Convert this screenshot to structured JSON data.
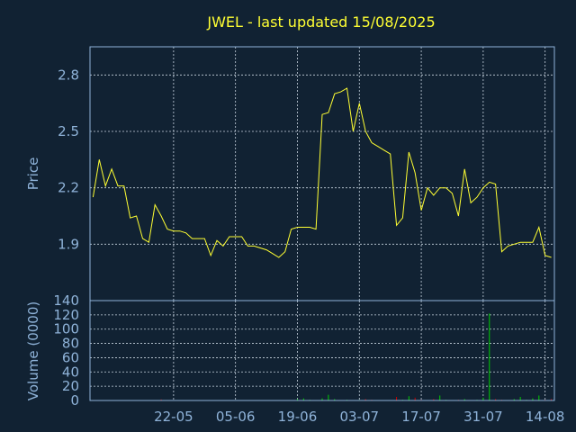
{
  "chart_data": [
    {
      "type": "line",
      "title": "JWEL - last updated 15/08/2025",
      "ylabel": "Price",
      "ylim": [
        1.6,
        2.95
      ],
      "yticks": [
        "1.9",
        "2.2",
        "2.5",
        "2.8"
      ],
      "yticks_vals": [
        1.9,
        2.2,
        2.5,
        2.8
      ],
      "grid": true,
      "x_dates": [
        "05-05",
        "06-05",
        "07-05",
        "08-05",
        "09-05",
        "12-05",
        "13-05",
        "14-05",
        "15-05",
        "16-05",
        "19-05",
        "20-05",
        "21-05",
        "22-05",
        "23-05",
        "26-05",
        "27-05",
        "28-05",
        "29-05",
        "30-05",
        "02-06",
        "03-06",
        "04-06",
        "05-06",
        "06-06",
        "09-06",
        "10-06",
        "11-06",
        "12-06",
        "13-06",
        "16-06",
        "17-06",
        "18-06",
        "19-06",
        "20-06",
        "23-06",
        "24-06",
        "25-06",
        "26-06",
        "27-06",
        "30-06",
        "01-07",
        "02-07",
        "03-07",
        "04-07",
        "07-07",
        "08-07",
        "09-07",
        "10-07",
        "11-07",
        "14-07",
        "15-07",
        "16-07",
        "17-07",
        "18-07",
        "21-07",
        "22-07",
        "23-07",
        "24-07",
        "25-07",
        "28-07",
        "29-07",
        "30-07",
        "31-07",
        "01-08",
        "04-08",
        "05-08",
        "06-08",
        "07-08",
        "08-08",
        "11-08",
        "12-08",
        "13-08",
        "14-08",
        "15-08"
      ],
      "series": [
        {
          "values": [
            2.15,
            2.35,
            2.21,
            2.3,
            2.21,
            2.21,
            2.04,
            2.05,
            1.93,
            1.91,
            2.11,
            2.05,
            1.98,
            1.97,
            1.97,
            1.96,
            1.93,
            1.93,
            1.93,
            1.84,
            1.92,
            1.89,
            1.94,
            1.94,
            1.94,
            1.89,
            1.89,
            1.88,
            1.87,
            1.85,
            1.83,
            1.86,
            1.98,
            1.99,
            1.99,
            1.99,
            1.98,
            2.59,
            2.6,
            2.7,
            2.71,
            2.73,
            2.5,
            2.65,
            2.5,
            2.44,
            2.42,
            2.4,
            2.38,
            2.0,
            2.04,
            2.39,
            2.28,
            2.08,
            2.2,
            2.16,
            2.2,
            2.2,
            2.17,
            2.05,
            2.3,
            2.12,
            2.15,
            2.2,
            2.23,
            2.22,
            1.86,
            1.89,
            1.9,
            1.91,
            1.91,
            1.91,
            1.99,
            1.84,
            1.83
          ]
        }
      ]
    },
    {
      "type": "bar",
      "ylabel": "Volume (0000)",
      "ylim": [
        0,
        140
      ],
      "yticks": [
        "0",
        "20",
        "40",
        "60",
        "80",
        "100",
        "120",
        "140"
      ],
      "yticks_vals": [
        0,
        20,
        40,
        60,
        80,
        100,
        120,
        140
      ],
      "grid": true,
      "xticks": [
        "22-05",
        "05-06",
        "19-06",
        "03-07",
        "17-07",
        "31-07",
        "14-08"
      ],
      "xticks_vals": [
        "22-05",
        "05-06",
        "19-06",
        "03-07",
        "17-07",
        "31-07",
        "14-08"
      ],
      "series": [
        {
          "values": [
            0.5,
            0.2,
            0.3,
            0.4,
            0.2,
            0.6,
            0.3,
            0.5,
            0.2,
            0.4,
            0.5,
            1.5,
            0.3,
            0.2,
            0.4,
            0.2,
            0.3,
            0.2,
            0.4,
            0.2,
            0.3,
            0.5,
            0.2,
            0.3,
            0.2,
            0.4,
            0.3,
            0.2,
            0.3,
            0.2,
            0.5,
            0.3,
            0.4,
            2,
            3,
            1,
            0.5,
            3,
            8,
            2,
            0.5,
            1,
            0.4,
            0.8,
            2,
            1,
            0.5,
            0.3,
            0.6,
            5,
            1,
            6,
            4,
            1,
            0.5,
            2,
            7,
            1,
            0.5,
            1,
            2,
            0.5,
            1,
            4,
            122,
            2,
            1,
            0.5,
            2,
            5,
            1,
            3,
            7,
            1,
            2
          ],
          "colors": [
            "#00cc00",
            "#cc0000"
          ],
          "up_color": "#00cc00",
          "down_color": "#cc0000"
        }
      ]
    }
  ],
  "colors": {
    "background": "#112233",
    "line": "#ffff33",
    "frame": "#8fb3d9",
    "grid": "#c8d4e0",
    "volume_up": "#00cc00",
    "volume_down": "#cc0000"
  }
}
